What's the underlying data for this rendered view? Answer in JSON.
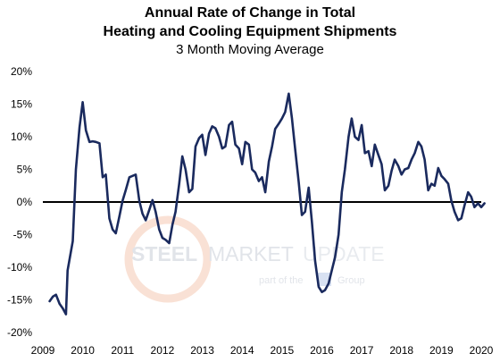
{
  "chart_data": {
    "type": "line",
    "title_lines": [
      "Annual Rate of Change in Total",
      "Heating and Cooling Equipment Shipments"
    ],
    "subtitle": "3 Month Moving Average",
    "xlabel": "",
    "ylabel": "",
    "xlim": [
      2009,
      2020
    ],
    "ylim": [
      -20,
      20
    ],
    "y_ticks": [
      20,
      15,
      10,
      5,
      0,
      -5,
      -10,
      -15,
      -20
    ],
    "y_tick_labels": [
      "20%",
      "15%",
      "10%",
      "5%",
      "0%",
      "-5%",
      "-10%",
      "-15%",
      "-20%"
    ],
    "x_ticks": [
      2009,
      2010,
      2011,
      2012,
      2013,
      2014,
      2015,
      2016,
      2017,
      2018,
      2019,
      2020
    ],
    "x_tick_labels": [
      "2009",
      "2010",
      "2011",
      "2012",
      "2013",
      "2014",
      "2015",
      "2016",
      "2017",
      "2018",
      "2019",
      "2020"
    ],
    "grid": "none",
    "legend": "none",
    "series": [
      {
        "color": "#1a2a5e",
        "points": [
          [
            2009.17,
            -15.2
          ],
          [
            2009.25,
            -14.5
          ],
          [
            2009.33,
            -14.2
          ],
          [
            2009.42,
            -15.6
          ],
          [
            2009.5,
            -16.3
          ],
          [
            2009.58,
            -17.2
          ],
          [
            2009.62,
            -10.5
          ],
          [
            2009.75,
            -6.0
          ],
          [
            2009.83,
            5.0
          ],
          [
            2009.92,
            11.5
          ],
          [
            2010.0,
            15.3
          ],
          [
            2010.08,
            11.0
          ],
          [
            2010.17,
            9.2
          ],
          [
            2010.25,
            9.3
          ],
          [
            2010.33,
            9.2
          ],
          [
            2010.42,
            9.0
          ],
          [
            2010.5,
            3.8
          ],
          [
            2010.58,
            4.2
          ],
          [
            2010.67,
            -2.5
          ],
          [
            2010.75,
            -4.2
          ],
          [
            2010.83,
            -4.8
          ],
          [
            2010.92,
            -2.2
          ],
          [
            2011.0,
            0.2
          ],
          [
            2011.08,
            1.8
          ],
          [
            2011.17,
            3.8
          ],
          [
            2011.25,
            4.0
          ],
          [
            2011.33,
            4.2
          ],
          [
            2011.42,
            0.2
          ],
          [
            2011.5,
            -1.8
          ],
          [
            2011.58,
            -2.8
          ],
          [
            2011.67,
            -1.2
          ],
          [
            2011.75,
            0.3
          ],
          [
            2011.83,
            -1.5
          ],
          [
            2011.92,
            -4.2
          ],
          [
            2012.0,
            -5.5
          ],
          [
            2012.08,
            -5.8
          ],
          [
            2012.17,
            -6.3
          ],
          [
            2012.25,
            -3.5
          ],
          [
            2012.33,
            -1.5
          ],
          [
            2012.42,
            2.8
          ],
          [
            2012.5,
            7.0
          ],
          [
            2012.58,
            5.0
          ],
          [
            2012.67,
            1.5
          ],
          [
            2012.75,
            2.0
          ],
          [
            2012.83,
            8.5
          ],
          [
            2012.92,
            9.8
          ],
          [
            2013.0,
            10.3
          ],
          [
            2013.08,
            7.2
          ],
          [
            2013.17,
            10.5
          ],
          [
            2013.25,
            11.6
          ],
          [
            2013.33,
            11.3
          ],
          [
            2013.42,
            10.0
          ],
          [
            2013.5,
            8.2
          ],
          [
            2013.58,
            8.5
          ],
          [
            2013.67,
            11.8
          ],
          [
            2013.75,
            12.3
          ],
          [
            2013.83,
            8.8
          ],
          [
            2013.92,
            8.2
          ],
          [
            2014.0,
            5.8
          ],
          [
            2014.08,
            9.2
          ],
          [
            2014.17,
            8.8
          ],
          [
            2014.25,
            5.0
          ],
          [
            2014.33,
            4.5
          ],
          [
            2014.42,
            3.2
          ],
          [
            2014.5,
            3.8
          ],
          [
            2014.58,
            1.5
          ],
          [
            2014.67,
            6.2
          ],
          [
            2014.75,
            8.5
          ],
          [
            2014.83,
            11.2
          ],
          [
            2014.92,
            12.0
          ],
          [
            2015.0,
            12.8
          ],
          [
            2015.08,
            13.8
          ],
          [
            2015.17,
            16.6
          ],
          [
            2015.25,
            12.8
          ],
          [
            2015.33,
            8.2
          ],
          [
            2015.42,
            3.0
          ],
          [
            2015.5,
            -2.0
          ],
          [
            2015.58,
            -1.5
          ],
          [
            2015.67,
            2.2
          ],
          [
            2015.75,
            -3.0
          ],
          [
            2015.83,
            -9.0
          ],
          [
            2015.92,
            -13.0
          ],
          [
            2016.0,
            -13.8
          ],
          [
            2016.08,
            -13.5
          ],
          [
            2016.17,
            -12.5
          ],
          [
            2016.25,
            -10.5
          ],
          [
            2016.33,
            -8.5
          ],
          [
            2016.42,
            -5.0
          ],
          [
            2016.5,
            1.5
          ],
          [
            2016.58,
            5.0
          ],
          [
            2016.67,
            10.0
          ],
          [
            2016.75,
            12.8
          ],
          [
            2016.83,
            10.0
          ],
          [
            2016.92,
            9.5
          ],
          [
            2017.0,
            11.8
          ],
          [
            2017.08,
            7.5
          ],
          [
            2017.17,
            7.8
          ],
          [
            2017.25,
            5.5
          ],
          [
            2017.33,
            8.8
          ],
          [
            2017.42,
            7.2
          ],
          [
            2017.5,
            5.8
          ],
          [
            2017.58,
            1.8
          ],
          [
            2017.67,
            2.5
          ],
          [
            2017.75,
            4.8
          ],
          [
            2017.83,
            6.5
          ],
          [
            2017.92,
            5.5
          ],
          [
            2018.0,
            4.2
          ],
          [
            2018.08,
            5.0
          ],
          [
            2018.17,
            5.2
          ],
          [
            2018.25,
            6.5
          ],
          [
            2018.33,
            7.5
          ],
          [
            2018.42,
            9.2
          ],
          [
            2018.5,
            8.5
          ],
          [
            2018.58,
            6.5
          ],
          [
            2018.67,
            1.8
          ],
          [
            2018.75,
            2.8
          ],
          [
            2018.83,
            2.5
          ],
          [
            2018.92,
            5.2
          ],
          [
            2019.0,
            4.0
          ],
          [
            2019.08,
            3.5
          ],
          [
            2019.17,
            2.8
          ],
          [
            2019.25,
            0.2
          ],
          [
            2019.33,
            -1.5
          ],
          [
            2019.42,
            -2.8
          ],
          [
            2019.5,
            -2.5
          ],
          [
            2019.58,
            -0.5
          ],
          [
            2019.67,
            1.5
          ],
          [
            2019.75,
            0.8
          ],
          [
            2019.83,
            -0.8
          ],
          [
            2019.92,
            -0.2
          ],
          [
            2020.0,
            -0.8
          ],
          [
            2020.08,
            -0.2
          ]
        ]
      }
    ],
    "zero_line": true
  },
  "watermark": {
    "steel": "STEEL",
    "market": "MARKET",
    "update": "UPDATE",
    "tagline_pre": "part of the",
    "tagline_post": "Group"
  }
}
